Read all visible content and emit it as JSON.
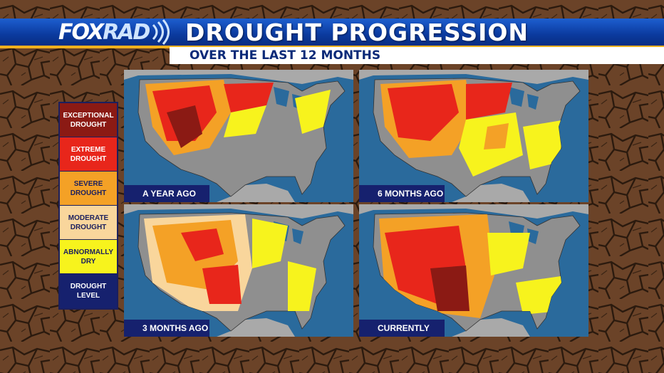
{
  "header": {
    "logo_fox": "FOX",
    "logo_rad": "RAD",
    "title": "DROUGHT PROGRESSION",
    "subtitle": "OVER THE LAST 12 MONTHS"
  },
  "legend": {
    "items": [
      {
        "label": "EXCEPTIONAL DROUGHT",
        "color": "#8b1a14",
        "text_color": "#ffffff"
      },
      {
        "label": "EXTREME DROUGHT",
        "color": "#e8261b",
        "text_color": "#ffffff"
      },
      {
        "label": "SEVERE DROUGHT",
        "color": "#f4a126",
        "text_color": "#1b1f5e"
      },
      {
        "label": "MODERATE DROUGHT",
        "color": "#f9d69c",
        "text_color": "#1b1f5e"
      },
      {
        "label": "ABNORMALLY DRY",
        "color": "#f7f31d",
        "text_color": "#1b1f5e"
      },
      {
        "label": "DROUGHT LEVEL",
        "color": "#16216e",
        "text_color": "#ffffff"
      }
    ]
  },
  "panels": [
    {
      "label": "A YEAR AGO"
    },
    {
      "label": "6 MONTHS AGO"
    },
    {
      "label": "3 MONTHS AGO"
    },
    {
      "label": "CURRENTLY"
    }
  ],
  "colors": {
    "water": "#2a6a9c",
    "land": "#8f8f8f",
    "neighbor_land": "#a9a9a9",
    "banner": "#0b3a9e",
    "accent": "#f2b01e"
  }
}
